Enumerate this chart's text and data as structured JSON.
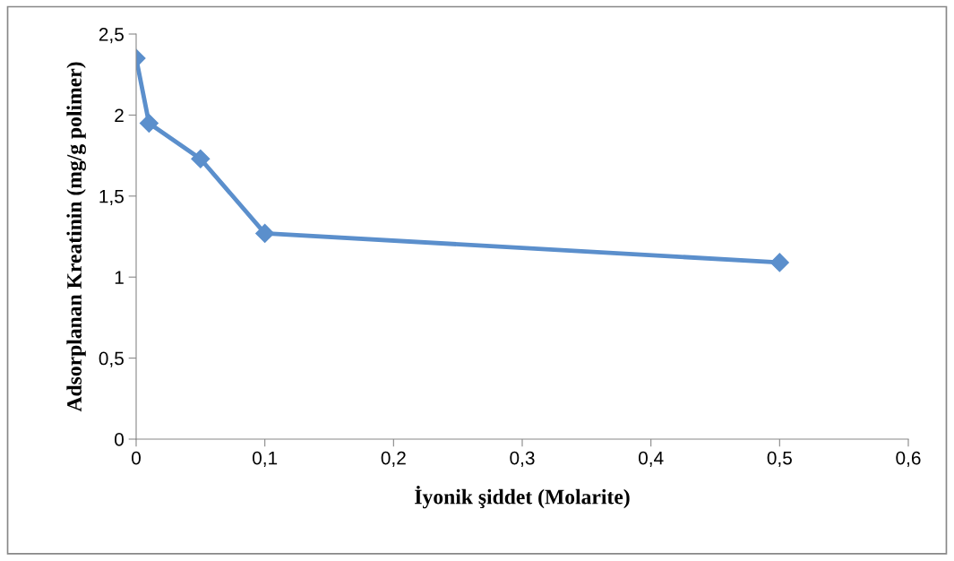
{
  "chart_data": {
    "type": "line",
    "xlabel": "İyonik şiddet (Molarite)",
    "ylabel": "Adsorplanan Kreatinin (mg/g polimer)",
    "x": [
      0,
      0.01,
      0.05,
      0.1,
      0.5
    ],
    "series": [
      {
        "color": "#5b8fcc",
        "values": [
          2.35,
          1.95,
          1.73,
          1.27,
          1.09
        ]
      }
    ],
    "xlim": [
      0,
      0.6
    ],
    "ylim": [
      0,
      2.5
    ],
    "xticks": [
      0,
      {
        "value": 0.1,
        "label": "0,1"
      },
      {
        "value": 0.2,
        "label": "0,2"
      },
      {
        "value": 0.3,
        "label": "0,3"
      },
      {
        "value": 0.4,
        "label": "0,4"
      },
      {
        "value": 0.5,
        "label": "0,5"
      },
      {
        "value": 0.6,
        "label": "0,6"
      }
    ],
    "yticks": [
      0,
      {
        "value": 0.5,
        "label": "0,5"
      },
      1,
      {
        "value": 1.5,
        "label": "1,5"
      },
      2,
      {
        "value": 2.5,
        "label": "2,5"
      }
    ],
    "marker": "diamond",
    "line_style": "solid",
    "grid": false,
    "legend": false
  }
}
